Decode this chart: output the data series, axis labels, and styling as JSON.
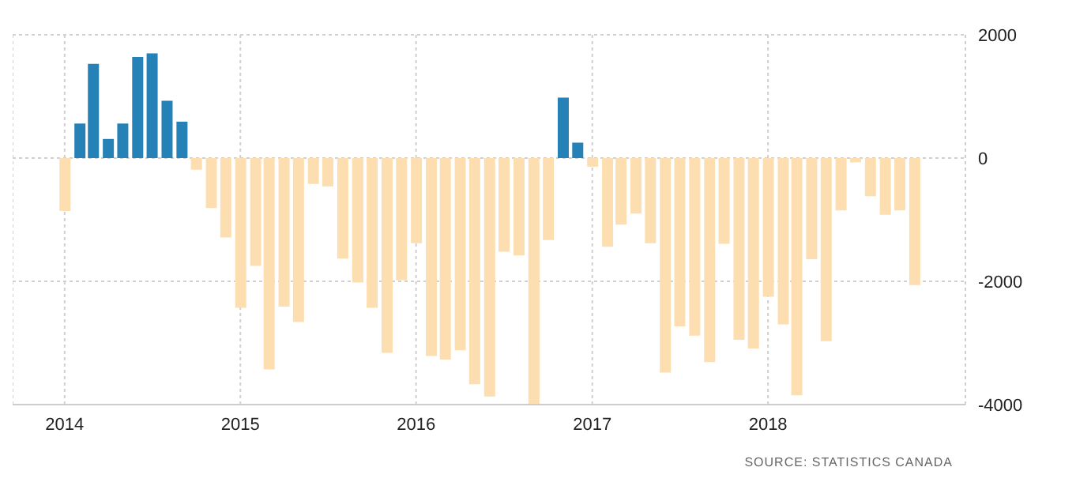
{
  "chart_data": {
    "type": "bar",
    "x": [
      "2014-01",
      "2014-02",
      "2014-03",
      "2014-04",
      "2014-05",
      "2014-06",
      "2014-07",
      "2014-08",
      "2014-09",
      "2014-10",
      "2014-11",
      "2014-12",
      "2015-01",
      "2015-02",
      "2015-03",
      "2015-04",
      "2015-05",
      "2015-06",
      "2015-07",
      "2015-08",
      "2015-09",
      "2015-10",
      "2015-11",
      "2015-12",
      "2016-01",
      "2016-02",
      "2016-03",
      "2016-04",
      "2016-05",
      "2016-06",
      "2016-07",
      "2016-08",
      "2016-09",
      "2016-10",
      "2016-11",
      "2016-12",
      "2017-01",
      "2017-02",
      "2017-03",
      "2017-04",
      "2017-05",
      "2017-06",
      "2017-07",
      "2017-08",
      "2017-09",
      "2017-10",
      "2017-11",
      "2017-12",
      "2018-01",
      "2018-02",
      "2018-03",
      "2018-04",
      "2018-05",
      "2018-06",
      "2018-07",
      "2018-08",
      "2018-09",
      "2018-10",
      "2018-11"
    ],
    "values": [
      -860,
      560,
      1530,
      310,
      560,
      1640,
      1700,
      930,
      590,
      -190,
      -810,
      -1290,
      -2430,
      -1750,
      -3430,
      -2410,
      -2660,
      -420,
      -460,
      -1630,
      -2020,
      -2430,
      -3160,
      -1980,
      -1380,
      -3210,
      -3270,
      -3120,
      -3670,
      -3870,
      -1520,
      -1580,
      -3990,
      -1330,
      980,
      250,
      -140,
      -1440,
      -1080,
      -900,
      -1380,
      -3480,
      -2730,
      -2880,
      -3310,
      -1390,
      -2950,
      -3090,
      -2250,
      -2700,
      -3850,
      -1640,
      -2970,
      -850,
      -70,
      -620,
      -920,
      -850,
      -2060
    ],
    "colors": [
      "#fddeb0",
      "#2681b6",
      "#2681b6",
      "#2681b6",
      "#2681b6",
      "#2681b6",
      "#2681b6",
      "#2681b6",
      "#2681b6",
      "#fddeb0",
      "#fddeb0",
      "#fddeb0",
      "#fddeb0",
      "#fddeb0",
      "#fddeb0",
      "#fddeb0",
      "#fddeb0",
      "#fddeb0",
      "#fddeb0",
      "#fddeb0",
      "#fddeb0",
      "#fddeb0",
      "#fddeb0",
      "#fddeb0",
      "#fddeb0",
      "#fddeb0",
      "#fddeb0",
      "#fddeb0",
      "#fddeb0",
      "#fddeb0",
      "#fddeb0",
      "#fddeb0",
      "#fddeb0",
      "#fddeb0",
      "#2681b6",
      "#2681b6",
      "#fddeb0",
      "#fddeb0",
      "#fddeb0",
      "#fddeb0",
      "#fddeb0",
      "#fddeb0",
      "#fddeb0",
      "#fddeb0",
      "#fddeb0",
      "#fddeb0",
      "#fddeb0",
      "#fddeb0",
      "#fddeb0",
      "#fddeb0",
      "#fddeb0",
      "#fddeb0",
      "#fddeb0",
      "#fddeb0",
      "#fddeb0",
      "#fddeb0",
      "#fddeb0",
      "#fddeb0",
      "#fddeb0"
    ],
    "xlim": [
      "2013-09-15",
      "2019-02-15"
    ],
    "xticks": [
      "2014",
      "2015",
      "2016",
      "2017",
      "2018"
    ],
    "ylim": [
      -4000,
      2000
    ],
    "yticks": [
      -4000,
      -2000,
      0,
      2000
    ],
    "grid": true,
    "legend": false,
    "annotations": [
      "SOURCE: STATISTICS CANADA"
    ]
  }
}
